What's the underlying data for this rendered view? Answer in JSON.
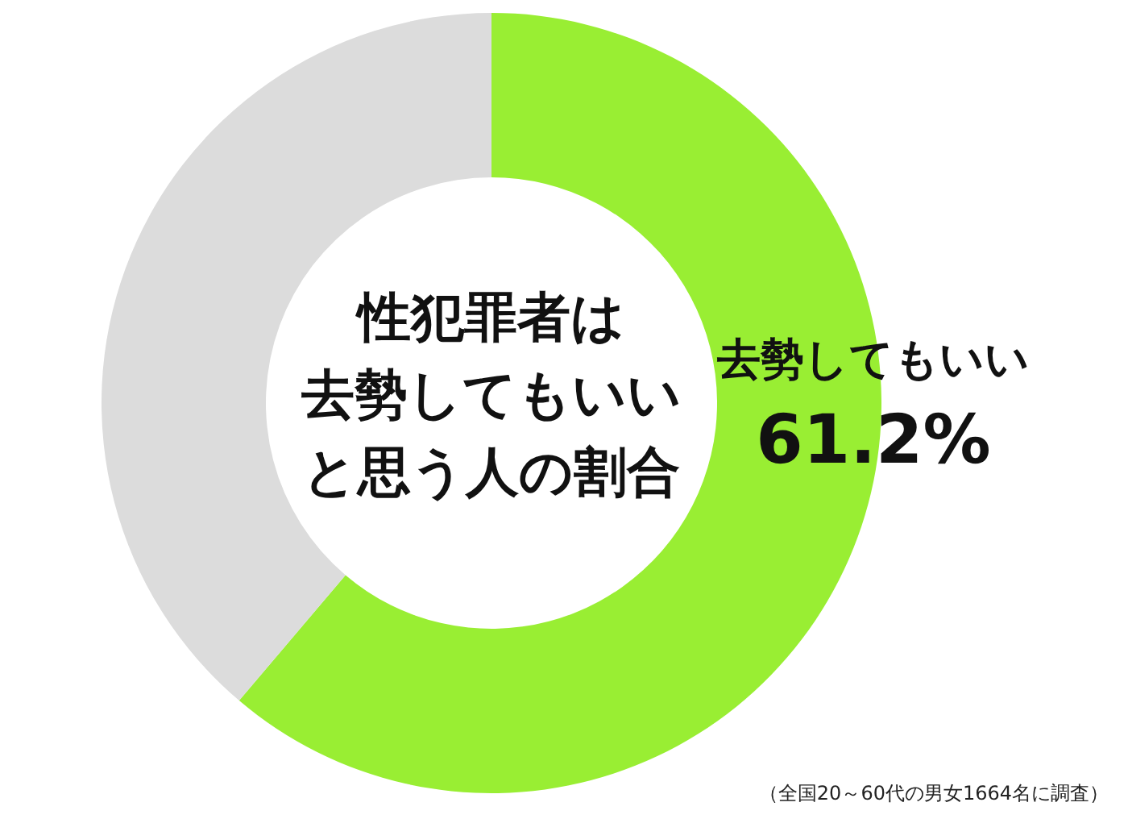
{
  "chart_data": {
    "type": "donut",
    "title": "性犯罪者は去勢してもいいと思う人の割合",
    "categories": [
      "去勢してもいい",
      null
    ],
    "values": [
      61.2,
      38.8
    ],
    "colors": [
      "#99ee33",
      "#dcdcdc"
    ],
    "value_labels": [
      "61.2%",
      null
    ],
    "annotations": [
      "（全国20～60代の男女1664名に調査）"
    ]
  }
}
